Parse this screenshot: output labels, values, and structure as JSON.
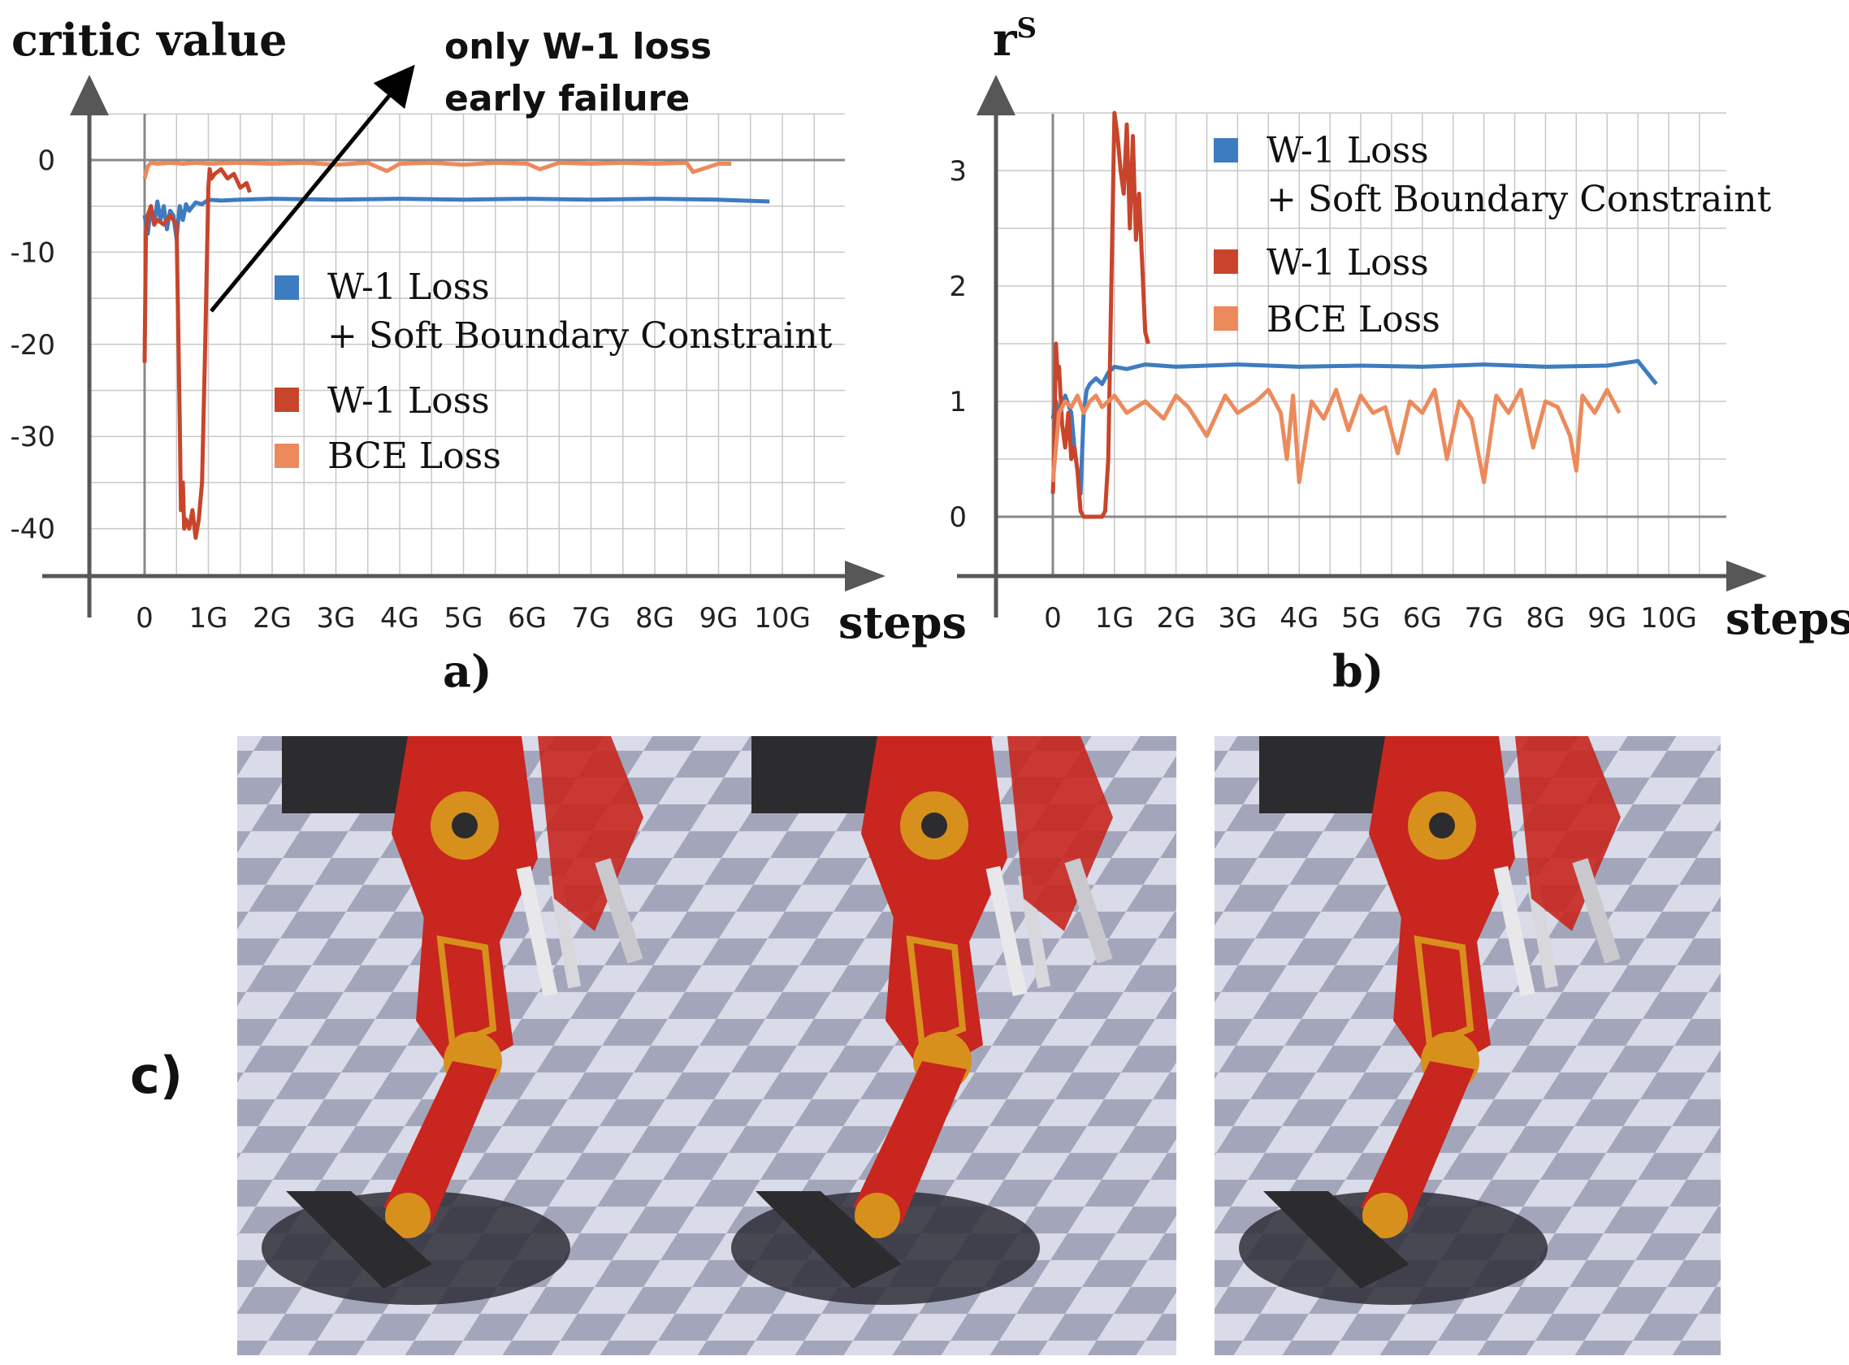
{
  "colors": {
    "soft": "#3d7cc0",
    "w1": "#c8452b",
    "bce": "#ec8a5c",
    "grid": "#c8c8c8",
    "axis": "#575757",
    "floor_light": "#d9dbe8",
    "floor_dark": "#a3a6bb",
    "robot_red": "#c8261f",
    "robot_orange": "#d8901c",
    "robot_dark": "#2c2c2e"
  },
  "panel_a": {
    "ylabel": "critic value",
    "xlabel": "steps",
    "panel_label": "a)",
    "annotation_line1": "only W-1 loss",
    "annotation_line2": "early failure",
    "legend": {
      "soft_line1": "W-1 Loss",
      "soft_line2": "+ Soft Boundary Constraint",
      "w1": "W-1 Loss",
      "bce": "BCE Loss"
    }
  },
  "panel_b": {
    "ylabel_main": "r",
    "ylabel_sup": "S",
    "xlabel": "steps",
    "panel_label": "b)",
    "legend": {
      "soft_line1": "W-1 Loss",
      "soft_line2": "+ Soft Boundary Constraint",
      "w1": "W-1 Loss",
      "bce": "BCE Loss"
    }
  },
  "panel_c": {
    "label": "c)",
    "frame_count": 3
  },
  "chart_data": [
    {
      "type": "line",
      "panel": "a",
      "ylabel": "critic value",
      "xlabel": "steps",
      "x_ticks": [
        "0",
        "1G",
        "2G",
        "3G",
        "4G",
        "5G",
        "6G",
        "7G",
        "8G",
        "9G",
        "10G"
      ],
      "y_ticks": [
        "0",
        "-10",
        "-20",
        "-30",
        "-40"
      ],
      "xlim": [
        0,
        11
      ],
      "ylim": [
        -45,
        5
      ],
      "grid": true,
      "legend_position": "center-right",
      "series": [
        {
          "name": "W-1 Loss + Soft Boundary Constraint",
          "color_key": "soft",
          "x": [
            0,
            0.05,
            0.1,
            0.15,
            0.2,
            0.25,
            0.3,
            0.35,
            0.4,
            0.45,
            0.5,
            0.55,
            0.6,
            0.65,
            0.7,
            0.8,
            0.9,
            1.0,
            1.2,
            1.5,
            2,
            3,
            4,
            5,
            6,
            7,
            8,
            9,
            9.8
          ],
          "y": [
            -6,
            -8,
            -5,
            -7,
            -4.5,
            -6.5,
            -5,
            -7.5,
            -5.5,
            -6,
            -8.5,
            -5,
            -6.5,
            -4.8,
            -5.5,
            -4.6,
            -4.8,
            -4.3,
            -4.4,
            -4.3,
            -4.2,
            -4.3,
            -4.2,
            -4.3,
            -4.2,
            -4.3,
            -4.2,
            -4.3,
            -4.5
          ]
        },
        {
          "name": "W-1 Loss",
          "color_key": "w1",
          "x": [
            0,
            0.02,
            0.05,
            0.1,
            0.15,
            0.2,
            0.3,
            0.4,
            0.5,
            0.52,
            0.55,
            0.57,
            0.6,
            0.62,
            0.65,
            0.7,
            0.75,
            0.8,
            0.85,
            0.9,
            0.95,
            1.0,
            1.02,
            1.05,
            1.1,
            1.2,
            1.3,
            1.4,
            1.5,
            1.6,
            1.65
          ],
          "y": [
            -22,
            -8,
            -6,
            -5,
            -7,
            -6.5,
            -7,
            -6,
            -7,
            -15,
            -28,
            -38,
            -35,
            -40,
            -39,
            -40,
            -38,
            -41,
            -39,
            -35,
            -20,
            -3,
            -1,
            -2,
            -1.5,
            -1,
            -2,
            -1.5,
            -3,
            -2.5,
            -3.5
          ]
        },
        {
          "name": "BCE Loss",
          "color_key": "bce",
          "x": [
            0,
            0.05,
            0.1,
            0.2,
            0.4,
            0.6,
            0.8,
            1,
            1.5,
            2,
            2.5,
            3,
            3.5,
            3.8,
            4,
            4.5,
            5,
            5.5,
            6,
            6.2,
            6.5,
            7,
            7.5,
            8,
            8.5,
            8.6,
            9,
            9.2
          ],
          "y": [
            -2,
            -0.7,
            -0.3,
            -0.4,
            -0.3,
            -0.4,
            -0.3,
            -0.4,
            -0.3,
            -0.4,
            -0.3,
            -0.5,
            -0.3,
            -1.2,
            -0.4,
            -0.3,
            -0.5,
            -0.3,
            -0.4,
            -1.0,
            -0.3,
            -0.4,
            -0.3,
            -0.4,
            -0.3,
            -1.3,
            -0.4,
            -0.4
          ]
        }
      ]
    },
    {
      "type": "line",
      "panel": "b",
      "ylabel": "rS",
      "xlabel": "steps",
      "x_ticks": [
        "0",
        "1G",
        "2G",
        "3G",
        "4G",
        "5G",
        "6G",
        "7G",
        "8G",
        "9G",
        "10G"
      ],
      "y_ticks": [
        "0",
        "1",
        "2",
        "3"
      ],
      "xlim": [
        0,
        11
      ],
      "ylim": [
        0,
        3.5
      ],
      "grid": true,
      "legend_position": "top-right",
      "series": [
        {
          "name": "W-1 Loss + Soft Boundary Constraint",
          "color_key": "soft",
          "x": [
            0,
            0.05,
            0.1,
            0.15,
            0.2,
            0.3,
            0.35,
            0.4,
            0.45,
            0.5,
            0.55,
            0.6,
            0.7,
            0.8,
            0.9,
            1.0,
            1.2,
            1.5,
            2,
            3,
            4,
            5,
            6,
            7,
            8,
            9,
            9.5,
            9.8
          ],
          "y": [
            0.85,
            1.0,
            0.9,
            0.95,
            1.05,
            0.9,
            0.6,
            0.4,
            0.2,
            0.9,
            1.1,
            1.15,
            1.2,
            1.15,
            1.25,
            1.3,
            1.28,
            1.32,
            1.3,
            1.32,
            1.3,
            1.31,
            1.3,
            1.32,
            1.3,
            1.31,
            1.35,
            1.15
          ]
        },
        {
          "name": "W-1 Loss",
          "color_key": "w1",
          "x": [
            0,
            0.02,
            0.05,
            0.08,
            0.1,
            0.15,
            0.2,
            0.25,
            0.3,
            0.35,
            0.4,
            0.45,
            0.5,
            0.55,
            0.6,
            0.7,
            0.8,
            0.85,
            0.9,
            0.95,
            1.0,
            1.05,
            1.1,
            1.15,
            1.2,
            1.25,
            1.3,
            1.35,
            1.4,
            1.45,
            1.5,
            1.55
          ],
          "y": [
            0.2,
            0.5,
            1.5,
            1.2,
            1.3,
            0.8,
            0.6,
            0.9,
            0.5,
            0.6,
            0.4,
            0.05,
            0.0,
            0.0,
            0.0,
            0.0,
            0.0,
            0.05,
            0.5,
            2.0,
            3.5,
            3.3,
            3.0,
            2.8,
            3.4,
            2.5,
            3.3,
            2.4,
            2.8,
            2.2,
            1.6,
            1.5
          ]
        },
        {
          "name": "BCE Loss",
          "color_key": "bce",
          "x": [
            0,
            0.1,
            0.2,
            0.3,
            0.4,
            0.5,
            0.6,
            0.7,
            0.8,
            0.9,
            1.0,
            1.2,
            1.5,
            1.8,
            2,
            2.2,
            2.5,
            2.8,
            3,
            3.3,
            3.5,
            3.7,
            3.8,
            3.9,
            4,
            4.2,
            4.4,
            4.6,
            4.8,
            5,
            5.2,
            5.4,
            5.6,
            5.8,
            6,
            6.2,
            6.4,
            6.6,
            6.8,
            7,
            7.2,
            7.4,
            7.6,
            7.8,
            8,
            8.2,
            8.4,
            8.5,
            8.6,
            8.8,
            9,
            9.2
          ],
          "y": [
            0.3,
            0.9,
            1.0,
            0.95,
            1.05,
            0.9,
            1.0,
            1.05,
            0.95,
            1.0,
            1.05,
            0.9,
            1.0,
            0.85,
            1.05,
            0.95,
            0.7,
            1.05,
            0.9,
            1.0,
            1.1,
            0.9,
            0.5,
            1.05,
            0.3,
            1.0,
            0.85,
            1.1,
            0.75,
            1.05,
            0.9,
            0.95,
            0.55,
            1.0,
            0.9,
            1.1,
            0.5,
            1.0,
            0.85,
            0.3,
            1.05,
            0.9,
            1.1,
            0.6,
            1.0,
            0.95,
            0.7,
            0.4,
            1.05,
            0.9,
            1.1,
            0.9
          ]
        }
      ]
    }
  ]
}
